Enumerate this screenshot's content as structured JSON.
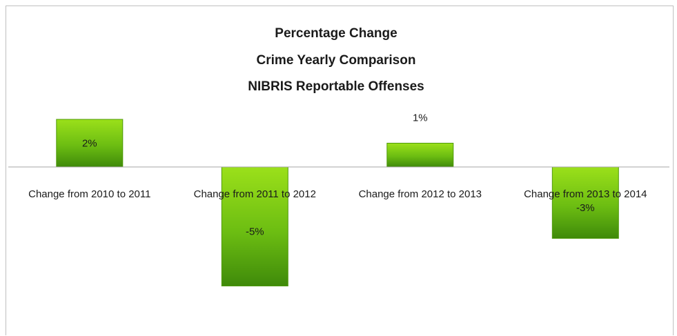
{
  "chart_data": {
    "type": "bar",
    "title_lines": [
      "Percentage Change",
      "Crime Yearly Comparison",
      "NIBRIS Reportable Offenses"
    ],
    "categories": [
      "Change from 2010 to 2011",
      "Change from 2011 to 2012",
      "Change from 2012 to 2013",
      "Change from 2013 to 2014"
    ],
    "values": [
      2,
      -5,
      1,
      -3
    ],
    "value_labels": [
      "2%",
      "-5%",
      "1%",
      "-3%"
    ],
    "ylim": [
      -6,
      6
    ],
    "grid": false,
    "legend": "none",
    "colors": {
      "bar_light": "#9be01a",
      "bar_mid": "#6cbd12",
      "bar_dark": "#3f8a0a",
      "bar_stroke": "#4f9a0c",
      "axis": "#a6a6a6",
      "text": "#1a1a1a"
    }
  }
}
